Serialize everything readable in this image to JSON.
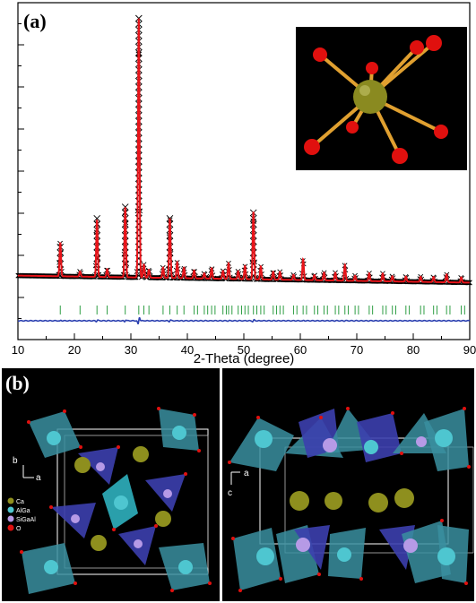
{
  "panels": {
    "a_label": "(a)",
    "b_label": "(b)"
  },
  "chart_data": {
    "type": "scatter",
    "title": "",
    "xlabel": "2-Theta (degree)",
    "ylabel": "",
    "xlim": [
      10,
      90
    ],
    "xticks": [
      "10",
      "20",
      "30",
      "40",
      "50",
      "60",
      "70",
      "80",
      "90"
    ],
    "grid": false,
    "series": [
      {
        "kind": "observed-markers",
        "color": "#000000",
        "marker": "x",
        "background_level": 0.06,
        "peaks": [
          {
            "x": 17.5,
            "y": 0.13
          },
          {
            "x": 21.0,
            "y": 0.02
          },
          {
            "x": 24.0,
            "y": 0.22
          },
          {
            "x": 25.8,
            "y": 0.03
          },
          {
            "x": 29.0,
            "y": 0.27
          },
          {
            "x": 31.4,
            "y": 1.0
          },
          {
            "x": 32.3,
            "y": 0.05
          },
          {
            "x": 33.2,
            "y": 0.03
          },
          {
            "x": 35.7,
            "y": 0.04
          },
          {
            "x": 36.9,
            "y": 0.23
          },
          {
            "x": 38.2,
            "y": 0.06
          },
          {
            "x": 39.4,
            "y": 0.04
          },
          {
            "x": 41.2,
            "y": 0.03
          },
          {
            "x": 43.0,
            "y": 0.02
          },
          {
            "x": 44.3,
            "y": 0.04
          },
          {
            "x": 46.3,
            "y": 0.03
          },
          {
            "x": 47.3,
            "y": 0.06
          },
          {
            "x": 49.0,
            "y": 0.03
          },
          {
            "x": 50.2,
            "y": 0.05
          },
          {
            "x": 51.7,
            "y": 0.26
          },
          {
            "x": 53.0,
            "y": 0.05
          },
          {
            "x": 55.2,
            "y": 0.03
          },
          {
            "x": 56.4,
            "y": 0.03
          },
          {
            "x": 58.8,
            "y": 0.02
          },
          {
            "x": 60.5,
            "y": 0.08
          },
          {
            "x": 62.5,
            "y": 0.02
          },
          {
            "x": 64.2,
            "y": 0.03
          },
          {
            "x": 66.2,
            "y": 0.03
          },
          {
            "x": 67.9,
            "y": 0.06
          },
          {
            "x": 69.7,
            "y": 0.02
          },
          {
            "x": 72.2,
            "y": 0.03
          },
          {
            "x": 74.6,
            "y": 0.03
          },
          {
            "x": 76.3,
            "y": 0.02
          },
          {
            "x": 78.7,
            "y": 0.02
          },
          {
            "x": 81.3,
            "y": 0.02
          },
          {
            "x": 83.6,
            "y": 0.02
          },
          {
            "x": 85.9,
            "y": 0.03
          },
          {
            "x": 88.5,
            "y": 0.02
          }
        ]
      },
      {
        "kind": "calculated-line",
        "color": "#e8141a"
      },
      {
        "kind": "bragg-ticks",
        "color": "#2f9e44",
        "positions": [
          17.5,
          21.0,
          24.0,
          25.8,
          29.0,
          31.4,
          32.3,
          33.2,
          35.7,
          36.9,
          38.2,
          39.4,
          41.2,
          43.0,
          44.3,
          46.3,
          47.3,
          49.0,
          50.2,
          51.7,
          53.0,
          55.2,
          56.4,
          58.8,
          60.5,
          62.5,
          64.2,
          66.2,
          67.9,
          69.7,
          72.2,
          74.6,
          76.3,
          78.7,
          81.3,
          83.6,
          85.9,
          88.5
        ]
      },
      {
        "kind": "difference-line",
        "color": "#2a3fb0"
      }
    ]
  },
  "inset": {
    "background": "#000000",
    "center_color": "#8a8a20",
    "ligand_color": "#e0100e",
    "bond_color": "#e0a030"
  },
  "structure_left": {
    "axis_b": "b",
    "axis_a": "a",
    "legend": [
      {
        "label": "Ca",
        "color": "#8e8f1e"
      },
      {
        "label": "AlGa",
        "color": "#4ec6d0"
      },
      {
        "label": "SiGaAl",
        "color": "#b69ae6"
      },
      {
        "label": "O",
        "color": "#e0100e"
      }
    ]
  },
  "structure_right": {
    "axis_a": "a",
    "axis_c": "c"
  }
}
